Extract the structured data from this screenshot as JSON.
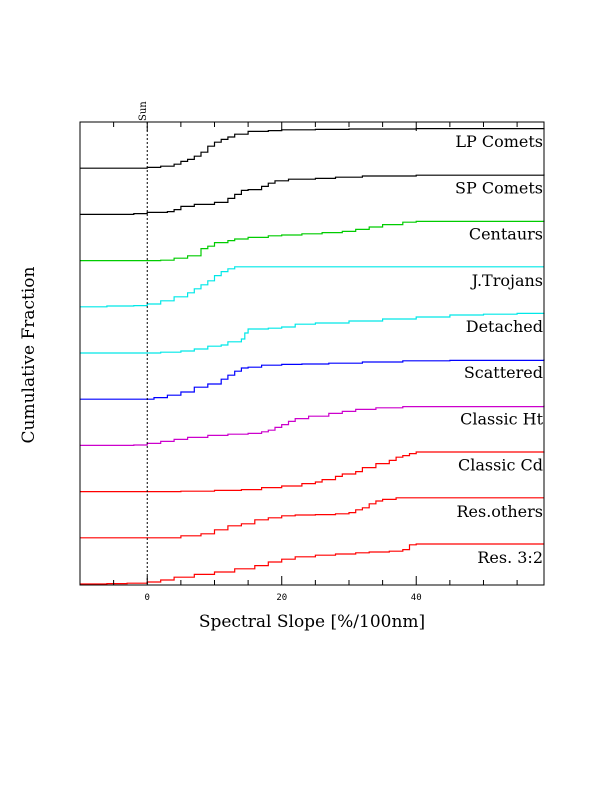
{
  "chart_data": {
    "type": "line",
    "title": "",
    "xlabel": "Spectral Slope [%/100nm]",
    "ylabel": "Cumulative Fraction",
    "xlim": [
      -10,
      59
    ],
    "x_ticks": [
      0,
      20,
      40
    ],
    "reference_line": {
      "x": 0,
      "label": "Sun",
      "style": "dotted"
    },
    "series": [
      {
        "name": "LP Comets",
        "color": "#000000",
        "points": [
          [
            -10,
            0
          ],
          [
            -5,
            0
          ],
          [
            0,
            0.02
          ],
          [
            2,
            0.05
          ],
          [
            4,
            0.1
          ],
          [
            5,
            0.17
          ],
          [
            6,
            0.22
          ],
          [
            7,
            0.3
          ],
          [
            8,
            0.4
          ],
          [
            9,
            0.55
          ],
          [
            10,
            0.65
          ],
          [
            11,
            0.72
          ],
          [
            12,
            0.78
          ],
          [
            13,
            0.85
          ],
          [
            15,
            0.92
          ],
          [
            18,
            0.94
          ],
          [
            20,
            0.96
          ],
          [
            25,
            0.97
          ],
          [
            30,
            0.98
          ],
          [
            40,
            0.99
          ],
          [
            59,
            1.0
          ]
        ]
      },
      {
        "name": "SP Comets",
        "color": "#000000",
        "points": [
          [
            -10,
            0
          ],
          [
            -2,
            0.02
          ],
          [
            0,
            0.05
          ],
          [
            3,
            0.07
          ],
          [
            4,
            0.12
          ],
          [
            5,
            0.2
          ],
          [
            7,
            0.25
          ],
          [
            10,
            0.3
          ],
          [
            12,
            0.4
          ],
          [
            13,
            0.5
          ],
          [
            14,
            0.6
          ],
          [
            15,
            0.62
          ],
          [
            17,
            0.7
          ],
          [
            18,
            0.78
          ],
          [
            19,
            0.84
          ],
          [
            21,
            0.88
          ],
          [
            25,
            0.9
          ],
          [
            28,
            0.93
          ],
          [
            32,
            0.96
          ],
          [
            40,
            0.98
          ],
          [
            59,
            1.0
          ]
        ]
      },
      {
        "name": "Centaurs",
        "color": "#00cc00",
        "points": [
          [
            -10,
            0
          ],
          [
            0,
            0
          ],
          [
            2,
            0.01
          ],
          [
            4,
            0.06
          ],
          [
            6,
            0.12
          ],
          [
            8,
            0.3
          ],
          [
            9,
            0.36
          ],
          [
            10,
            0.45
          ],
          [
            12,
            0.5
          ],
          [
            13,
            0.54
          ],
          [
            15,
            0.58
          ],
          [
            18,
            0.62
          ],
          [
            20,
            0.64
          ],
          [
            23,
            0.67
          ],
          [
            26,
            0.7
          ],
          [
            29,
            0.73
          ],
          [
            31,
            0.78
          ],
          [
            33,
            0.84
          ],
          [
            35,
            0.9
          ],
          [
            38,
            0.96
          ],
          [
            40,
            0.98
          ],
          [
            59,
            1.0
          ]
        ]
      },
      {
        "name": "J.Trojans",
        "color": "#00e8e8",
        "points": [
          [
            -10,
            0
          ],
          [
            -6,
            0.02
          ],
          [
            -2,
            0.03
          ],
          [
            0,
            0.07
          ],
          [
            2,
            0.15
          ],
          [
            4,
            0.25
          ],
          [
            6,
            0.35
          ],
          [
            7,
            0.45
          ],
          [
            8,
            0.55
          ],
          [
            9,
            0.65
          ],
          [
            10,
            0.78
          ],
          [
            11,
            0.88
          ],
          [
            12,
            0.95
          ],
          [
            13,
            1.0
          ],
          [
            59,
            1.0
          ]
        ]
      },
      {
        "name": "Detached",
        "color": "#00e8e8",
        "points": [
          [
            -10,
            0
          ],
          [
            2,
            0.02
          ],
          [
            5,
            0.05
          ],
          [
            7,
            0.1
          ],
          [
            9,
            0.17
          ],
          [
            11,
            0.2
          ],
          [
            12,
            0.28
          ],
          [
            14,
            0.35
          ],
          [
            14.5,
            0.5
          ],
          [
            15,
            0.6
          ],
          [
            18,
            0.62
          ],
          [
            20,
            0.65
          ],
          [
            22,
            0.72
          ],
          [
            25,
            0.75
          ],
          [
            30,
            0.8
          ],
          [
            35,
            0.85
          ],
          [
            40,
            0.9
          ],
          [
            45,
            0.95
          ],
          [
            50,
            0.97
          ],
          [
            55,
            0.99
          ],
          [
            59,
            1.0
          ]
        ]
      },
      {
        "name": "Scattered",
        "color": "#0000ff",
        "points": [
          [
            -10,
            0
          ],
          [
            0,
            0
          ],
          [
            1,
            0.04
          ],
          [
            3,
            0.1
          ],
          [
            5,
            0.18
          ],
          [
            7,
            0.3
          ],
          [
            9,
            0.38
          ],
          [
            11,
            0.5
          ],
          [
            12,
            0.6
          ],
          [
            13,
            0.7
          ],
          [
            14,
            0.78
          ],
          [
            15,
            0.8
          ],
          [
            17,
            0.85
          ],
          [
            20,
            0.87
          ],
          [
            23,
            0.88
          ],
          [
            27,
            0.9
          ],
          [
            32,
            0.93
          ],
          [
            38,
            0.96
          ],
          [
            45,
            0.97
          ],
          [
            59,
            1.0
          ]
        ]
      },
      {
        "name": "Classic Ht",
        "color": "#cc00cc",
        "points": [
          [
            -10,
            0
          ],
          [
            -2,
            0.01
          ],
          [
            0,
            0.05
          ],
          [
            2,
            0.1
          ],
          [
            4,
            0.15
          ],
          [
            6,
            0.2
          ],
          [
            9,
            0.25
          ],
          [
            12,
            0.28
          ],
          [
            15,
            0.3
          ],
          [
            17,
            0.34
          ],
          [
            18,
            0.38
          ],
          [
            19,
            0.45
          ],
          [
            20,
            0.52
          ],
          [
            21,
            0.6
          ],
          [
            22,
            0.67
          ],
          [
            24,
            0.73
          ],
          [
            27,
            0.8
          ],
          [
            29,
            0.85
          ],
          [
            31,
            0.9
          ],
          [
            34,
            0.94
          ],
          [
            38,
            0.97
          ],
          [
            59,
            1.0
          ]
        ]
      },
      {
        "name": "Classic Cd",
        "color": "#ff0000",
        "points": [
          [
            -10,
            0
          ],
          [
            0,
            0
          ],
          [
            5,
            0.01
          ],
          [
            10,
            0.03
          ],
          [
            14,
            0.05
          ],
          [
            17,
            0.1
          ],
          [
            20,
            0.14
          ],
          [
            23,
            0.2
          ],
          [
            25,
            0.24
          ],
          [
            26,
            0.3
          ],
          [
            28,
            0.38
          ],
          [
            29,
            0.44
          ],
          [
            31,
            0.5
          ],
          [
            32,
            0.6
          ],
          [
            34,
            0.7
          ],
          [
            36,
            0.78
          ],
          [
            37,
            0.86
          ],
          [
            38,
            0.9
          ],
          [
            39,
            0.95
          ],
          [
            40,
            0.99
          ],
          [
            59,
            1.0
          ]
        ]
      },
      {
        "name": "Res.others",
        "color": "#ff0000",
        "points": [
          [
            -10,
            0
          ],
          [
            2,
            0
          ],
          [
            5,
            0.05
          ],
          [
            8,
            0.1
          ],
          [
            10,
            0.2
          ],
          [
            12,
            0.3
          ],
          [
            14,
            0.35
          ],
          [
            16,
            0.45
          ],
          [
            18,
            0.5
          ],
          [
            20,
            0.55
          ],
          [
            22,
            0.57
          ],
          [
            25,
            0.58
          ],
          [
            28,
            0.6
          ],
          [
            30,
            0.63
          ],
          [
            31,
            0.7
          ],
          [
            32,
            0.75
          ],
          [
            33,
            0.85
          ],
          [
            34,
            0.92
          ],
          [
            35,
            0.96
          ],
          [
            37,
            1.0
          ],
          [
            59,
            1.0
          ]
        ]
      },
      {
        "name": "Res. 3:2",
        "color": "#ff0000",
        "points": [
          [
            -10,
            0
          ],
          [
            -6,
            0.01
          ],
          [
            -3,
            0.02
          ],
          [
            0,
            0.05
          ],
          [
            2,
            0.1
          ],
          [
            4,
            0.17
          ],
          [
            7,
            0.24
          ],
          [
            10,
            0.3
          ],
          [
            13,
            0.38
          ],
          [
            16,
            0.46
          ],
          [
            18,
            0.55
          ],
          [
            20,
            0.62
          ],
          [
            22,
            0.68
          ],
          [
            25,
            0.72
          ],
          [
            28,
            0.75
          ],
          [
            31,
            0.78
          ],
          [
            33,
            0.8
          ],
          [
            36,
            0.82
          ],
          [
            38,
            0.86
          ],
          [
            39,
            0.98
          ],
          [
            40,
            1.0
          ],
          [
            59,
            1.0
          ]
        ]
      }
    ]
  }
}
